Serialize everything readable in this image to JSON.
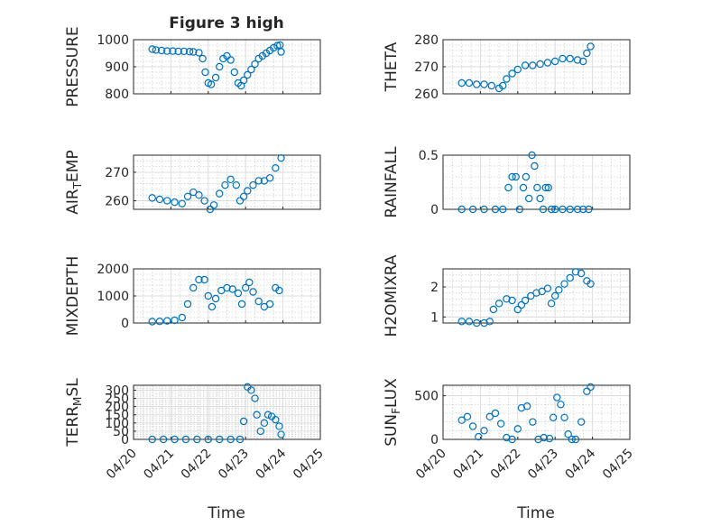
{
  "figure": {
    "title": "Figure 3 high"
  },
  "colors": {
    "series": "#0072BD",
    "axis": "#262626",
    "grid": "#dcdcdc",
    "background": "#ffffff"
  },
  "chart_data": [
    {
      "type": "scatter",
      "ylabel": "PRESSURE",
      "ylim": [
        800,
        1000
      ],
      "yticks": [
        800,
        900,
        1000
      ],
      "xlim": [
        0,
        5
      ],
      "grid": true,
      "x": [
        0.5,
        0.6,
        0.75,
        0.9,
        1.05,
        1.2,
        1.35,
        1.5,
        1.6,
        1.75,
        1.85,
        1.92,
        2.0,
        2.08,
        2.2,
        2.3,
        2.4,
        2.5,
        2.6,
        2.7,
        2.8,
        2.88,
        2.95,
        3.05,
        3.15,
        3.25,
        3.35,
        3.45,
        3.55,
        3.65,
        3.75,
        3.85,
        3.92,
        3.95
      ],
      "y": [
        965,
        962,
        960,
        958,
        958,
        957,
        957,
        956,
        955,
        952,
        930,
        880,
        840,
        835,
        860,
        900,
        930,
        940,
        925,
        880,
        840,
        830,
        850,
        870,
        890,
        910,
        930,
        940,
        950,
        960,
        970,
        978,
        980,
        955
      ]
    },
    {
      "type": "scatter",
      "ylabel": "THETA",
      "ylim": [
        260,
        280
      ],
      "yticks": [
        260,
        270,
        280
      ],
      "xlim": [
        0,
        5
      ],
      "grid": true,
      "x": [
        0.5,
        0.7,
        0.9,
        1.1,
        1.3,
        1.5,
        1.6,
        1.7,
        1.85,
        2.0,
        2.2,
        2.4,
        2.6,
        2.8,
        3.0,
        3.2,
        3.4,
        3.6,
        3.75,
        3.85,
        3.95
      ],
      "y": [
        264,
        264,
        263.5,
        263.5,
        263,
        262,
        263,
        265.5,
        267.5,
        269,
        270.5,
        270.5,
        271,
        271.5,
        272,
        273,
        273,
        272.5,
        272,
        275,
        277.5
      ]
    },
    {
      "type": "scatter",
      "ylabel": "AIR_TEMP",
      "ylim": [
        257,
        276
      ],
      "yticks": [
        260,
        270
      ],
      "xlim": [
        0,
        5
      ],
      "grid": true,
      "x": [
        0.5,
        0.7,
        0.9,
        1.1,
        1.3,
        1.45,
        1.6,
        1.75,
        1.9,
        2.05,
        2.15,
        2.3,
        2.45,
        2.6,
        2.75,
        2.85,
        2.95,
        3.05,
        3.2,
        3.35,
        3.5,
        3.65,
        3.8,
        3.95
      ],
      "y": [
        261,
        260.5,
        260,
        259.5,
        259,
        261.5,
        263,
        262,
        260,
        257,
        258.5,
        262.5,
        265.5,
        267.5,
        265.5,
        260,
        261.5,
        263.5,
        265.5,
        267,
        267,
        268,
        271.5,
        275
      ]
    },
    {
      "type": "scatter",
      "ylabel": "RAINFALL",
      "ylim": [
        0,
        0.5
      ],
      "yticks": [
        0,
        0.5
      ],
      "xlim": [
        0,
        5
      ],
      "grid": true,
      "x": [
        0.5,
        0.8,
        1.1,
        1.4,
        1.6,
        1.75,
        1.85,
        1.95,
        2.05,
        2.15,
        2.22,
        2.3,
        2.38,
        2.45,
        2.52,
        2.6,
        2.68,
        2.75,
        2.82,
        2.9,
        3.0,
        3.2,
        3.4,
        3.6,
        3.75,
        3.9
      ],
      "y": [
        0,
        0,
        0,
        0,
        0,
        0.2,
        0.3,
        0.3,
        0,
        0.2,
        0.3,
        0.1,
        0.5,
        0.4,
        0.2,
        0.1,
        0,
        0.2,
        0.2,
        0,
        0,
        0,
        0,
        0,
        0,
        0
      ]
    },
    {
      "type": "scatter",
      "ylabel": "MIXDEPTH",
      "ylim": [
        0,
        2000
      ],
      "yticks": [
        0,
        1000,
        2000
      ],
      "xlim": [
        0,
        5
      ],
      "grid": true,
      "x": [
        0.5,
        0.7,
        0.9,
        1.1,
        1.3,
        1.45,
        1.6,
        1.75,
        1.9,
        2.0,
        2.1,
        2.2,
        2.35,
        2.5,
        2.65,
        2.8,
        2.9,
        3.0,
        3.1,
        3.2,
        3.35,
        3.5,
        3.65,
        3.8,
        3.9
      ],
      "y": [
        50,
        60,
        80,
        100,
        200,
        700,
        1300,
        1600,
        1600,
        1000,
        600,
        900,
        1200,
        1300,
        1250,
        1100,
        700,
        1300,
        1500,
        1150,
        800,
        600,
        700,
        1300,
        1200
      ]
    },
    {
      "type": "scatter",
      "ylabel": "H2OMIXRA",
      "ylim": [
        0.8,
        2.6
      ],
      "yticks": [
        1,
        2
      ],
      "xlim": [
        0,
        5
      ],
      "grid": true,
      "x": [
        0.5,
        0.7,
        0.9,
        1.1,
        1.25,
        1.35,
        1.5,
        1.7,
        1.85,
        2.0,
        2.1,
        2.2,
        2.35,
        2.5,
        2.65,
        2.8,
        2.9,
        3.0,
        3.1,
        3.25,
        3.4,
        3.55,
        3.7,
        3.85,
        3.95
      ],
      "y": [
        0.85,
        0.85,
        0.8,
        0.8,
        0.85,
        1.25,
        1.45,
        1.6,
        1.55,
        1.25,
        1.4,
        1.55,
        1.7,
        1.8,
        1.85,
        1.95,
        1.45,
        1.7,
        1.9,
        2.1,
        2.3,
        2.5,
        2.45,
        2.2,
        2.1
      ]
    },
    {
      "type": "scatter",
      "ylabel": "TERR_MSL",
      "ylim": [
        0,
        330
      ],
      "yticks": [
        0,
        50,
        100,
        150,
        200,
        250,
        300
      ],
      "xlim": [
        0,
        5
      ],
      "grid": true,
      "x": [
        0.5,
        0.8,
        1.1,
        1.4,
        1.7,
        2.0,
        2.3,
        2.6,
        2.85,
        2.95,
        3.05,
        3.15,
        3.25,
        3.3,
        3.4,
        3.5,
        3.6,
        3.7,
        3.8,
        3.9,
        3.95
      ],
      "y": [
        0,
        0,
        0,
        0,
        0,
        0,
        0,
        0,
        0,
        110,
        320,
        300,
        250,
        150,
        50,
        100,
        150,
        140,
        120,
        80,
        30
      ]
    },
    {
      "type": "scatter",
      "ylabel": "SUN_FLUX",
      "ylim": [
        0,
        620
      ],
      "yticks": [
        0,
        500
      ],
      "xlim": [
        0,
        5
      ],
      "grid": true,
      "x": [
        0.5,
        0.65,
        0.8,
        0.95,
        1.1,
        1.25,
        1.4,
        1.55,
        1.7,
        1.85,
        2.0,
        2.1,
        2.25,
        2.4,
        2.55,
        2.7,
        2.85,
        2.95,
        3.05,
        3.15,
        3.25,
        3.35,
        3.45,
        3.55,
        3.7,
        3.85,
        3.95
      ],
      "y": [
        220,
        260,
        150,
        30,
        100,
        260,
        300,
        180,
        20,
        0,
        120,
        360,
        380,
        200,
        0,
        20,
        10,
        250,
        480,
        400,
        250,
        60,
        0,
        0,
        200,
        550,
        600
      ]
    }
  ],
  "labels": {
    "xlabel": "Time",
    "xticks": [
      "04/20",
      "04/21",
      "04/22",
      "04/23",
      "04/24",
      "04/25"
    ],
    "ylabels": {
      "p0": {
        "main": "PRESSURE",
        "sub": ""
      },
      "p1": {
        "main": "THETA",
        "sub": ""
      },
      "p2": {
        "pre": "AIR",
        "sub": "T",
        "post": "EMP"
      },
      "p3": {
        "main": "RAINFALL",
        "sub": ""
      },
      "p4": {
        "main": "MIXDEPTH",
        "sub": ""
      },
      "p5": {
        "main": "H2OMIXRA",
        "sub": ""
      },
      "p6": {
        "pre": "TERR",
        "sub": "M",
        "post": "SL"
      },
      "p7": {
        "pre": "SUN",
        "sub": "F",
        "post": "LUX"
      }
    },
    "yticklabels": {
      "p0": [
        "800",
        "900",
        "1000"
      ],
      "p1": [
        "260",
        "270",
        "280"
      ],
      "p2": [
        "260",
        "270"
      ],
      "p3": [
        "0",
        "0.5"
      ],
      "p4": [
        "0",
        "1000",
        "2000"
      ],
      "p5": [
        "1",
        "2"
      ],
      "p6": [
        "0",
        "50",
        "100",
        "150",
        "200",
        "250",
        "300"
      ],
      "p7": [
        "0",
        "500"
      ]
    }
  }
}
